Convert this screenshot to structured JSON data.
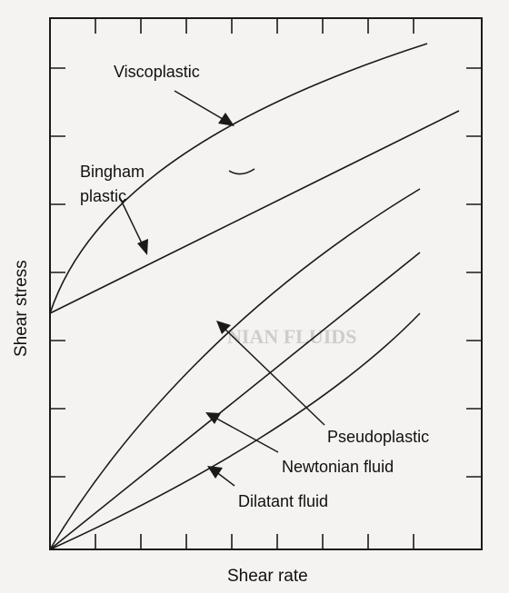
{
  "axes": {
    "x_label": "Shear rate",
    "y_label": "Shear stress"
  },
  "curves": [
    {
      "id": "viscoplastic",
      "label": "Viscoplastic"
    },
    {
      "id": "bingham",
      "label_line1": "Bingham",
      "label_line2": "plastic"
    },
    {
      "id": "pseudoplastic",
      "label": "Pseudoplastic"
    },
    {
      "id": "newtonian",
      "label": "Newtonian fluid"
    },
    {
      "id": "dilatant",
      "label": "Dilatant fluid"
    }
  ],
  "backdrop": {
    "heading": "NIAN FLUIDS"
  }
}
